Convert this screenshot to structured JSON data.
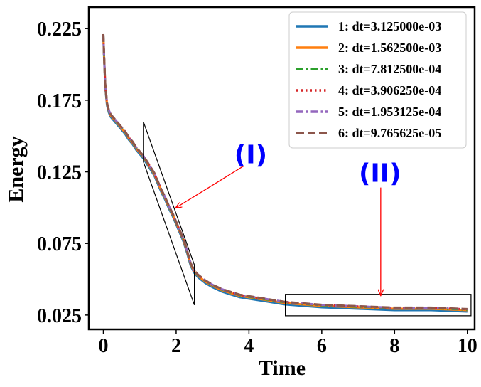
{
  "chart_data": {
    "type": "line",
    "title": "",
    "xlabel": "Time",
    "ylabel": "Energy",
    "xlim": [
      -0.4,
      10.2
    ],
    "ylim": [
      0.015,
      0.24
    ],
    "xticks": [
      0,
      2,
      4,
      6,
      8,
      10
    ],
    "yticks": [
      0.025,
      0.075,
      0.125,
      0.175,
      0.225
    ],
    "xtick_labels": [
      "0",
      "2",
      "4",
      "6",
      "8",
      "10"
    ],
    "ytick_labels": [
      "0.025",
      "0.075",
      "0.125",
      "0.175",
      "0.225"
    ],
    "legend_position": "top-right",
    "curve": {
      "x": [
        0,
        0.02,
        0.05,
        0.1,
        0.15,
        0.2,
        0.3,
        0.4,
        0.5,
        0.6,
        0.7,
        0.8,
        0.9,
        1.0,
        1.1,
        1.2,
        1.3,
        1.4,
        1.5,
        1.6,
        1.7,
        1.8,
        1.9,
        2.0,
        2.1,
        2.2,
        2.3,
        2.4,
        2.5,
        2.6,
        2.8,
        3.0,
        3.25,
        3.5,
        3.75,
        4.0,
        4.5,
        5.0,
        5.5,
        6.0,
        7.0,
        8.0,
        9.0,
        10.0
      ],
      "y": [
        0.22,
        0.205,
        0.185,
        0.172,
        0.167,
        0.164,
        0.161,
        0.158,
        0.155,
        0.152,
        0.148,
        0.145,
        0.141,
        0.138,
        0.135,
        0.131,
        0.127,
        0.123,
        0.117,
        0.111,
        0.106,
        0.1,
        0.095,
        0.089,
        0.083,
        0.077,
        0.069,
        0.06,
        0.055,
        0.052,
        0.048,
        0.045,
        0.042,
        0.04,
        0.038,
        0.037,
        0.035,
        0.033,
        0.032,
        0.031,
        0.03,
        0.029,
        0.029,
        0.028
      ]
    },
    "series": [
      {
        "name": "1: dt=3.125000e-03",
        "color": "#1f77b4",
        "dash": "solid",
        "offset": -0.0006
      },
      {
        "name": "2: dt=1.562500e-03",
        "color": "#ff7f0e",
        "dash": "solid",
        "offset": 0.0004
      },
      {
        "name": "3: dt=7.812500e-04",
        "color": "#2ca02c",
        "dash": "dashdot",
        "offset": 0.0008
      },
      {
        "name": "4: dt=3.906250e-04",
        "color": "#d62728",
        "dash": "dotted",
        "offset": 0.001
      },
      {
        "name": "5: dt=1.953125e-04",
        "color": "#9467bd",
        "dash": "dashdot",
        "offset": 0.0011
      },
      {
        "name": "6: dt=9.765625e-05",
        "color": "#8c564b",
        "dash": "dashed",
        "offset": 0.0012
      }
    ],
    "annotations": [
      {
        "label": "(I)",
        "color": "#0000ff",
        "text_at": [
          4.05,
          0.131
        ],
        "arrow_from": [
          3.85,
          0.129
        ],
        "arrow_to": [
          2.0,
          0.1
        ],
        "box": [
          [
            1.1,
            0.16
          ],
          [
            2.5,
            0.06
          ],
          [
            2.5,
            0.032
          ],
          [
            1.1,
            0.132
          ]
        ]
      },
      {
        "label": "(II)",
        "color": "#0000ff",
        "text_at": [
          7.6,
          0.118
        ],
        "arrow_from": [
          7.62,
          0.114
        ],
        "arrow_to": [
          7.62,
          0.039
        ],
        "box": [
          [
            5.0,
            0.0395
          ],
          [
            10.1,
            0.0395
          ],
          [
            10.1,
            0.0245
          ],
          [
            5.0,
            0.0245
          ]
        ]
      }
    ]
  }
}
